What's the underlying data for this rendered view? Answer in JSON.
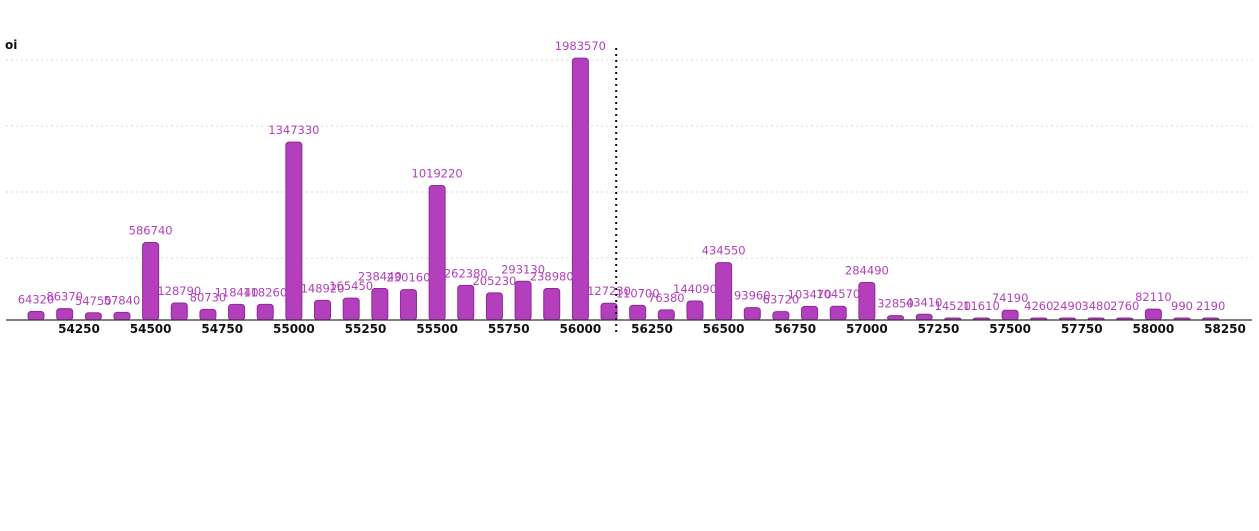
{
  "chart_data": {
    "type": "bar",
    "title": "",
    "ylabel": "oi",
    "xlabel": "",
    "grid": true,
    "ylim": [
      0,
      2000000
    ],
    "reference_line_x": 56125,
    "x_ticks": [
      54250,
      54500,
      54750,
      55000,
      55250,
      55500,
      55750,
      56000,
      56250,
      56500,
      56750,
      57000,
      57250,
      57500,
      57750,
      58000,
      58250
    ],
    "x": [
      54100,
      54200,
      54300,
      54400,
      54500,
      54600,
      54700,
      54800,
      54900,
      55000,
      55100,
      55200,
      55300,
      55400,
      55500,
      55600,
      55700,
      55800,
      55900,
      56000,
      56100,
      56200,
      56300,
      56400,
      56500,
      56600,
      56700,
      56800,
      56900,
      57000,
      57100,
      57200,
      57300,
      57400,
      57500,
      57600,
      57700,
      57800,
      57900,
      58000,
      58100,
      58200
    ],
    "values": [
      64320,
      86370,
      54750,
      57840,
      586740,
      128790,
      80730,
      118440,
      118260,
      1347330,
      148920,
      165450,
      238440,
      230160,
      1019220,
      262380,
      205230,
      293130,
      238980,
      1983570,
      127230,
      110700,
      76380,
      144090,
      434550,
      93960,
      63720,
      103470,
      104570,
      284490,
      32850,
      43410,
      14520,
      11610,
      74190,
      4260,
      2490,
      3480,
      2760,
      82110,
      990,
      2190
    ]
  }
}
